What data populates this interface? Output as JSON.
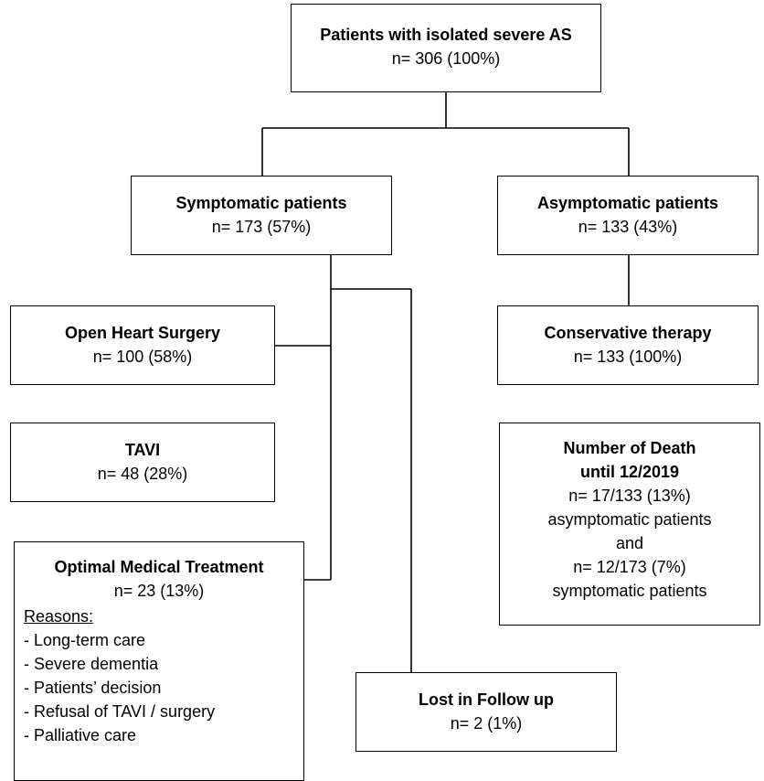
{
  "root": {
    "title": "Patients with isolated severe AS",
    "count": "n= 306 (100%)"
  },
  "symptomatic": {
    "title": "Symptomatic patients",
    "count": "n= 173 (57%)"
  },
  "asymptomatic": {
    "title": "Asymptomatic patients",
    "count": "n= 133 (43%)"
  },
  "surgery": {
    "title": "Open Heart Surgery",
    "count": "n= 100 (58%)"
  },
  "tavi": {
    "title": "TAVI",
    "count": "n= 48 (28%)"
  },
  "omt": {
    "title": "Optimal Medical Treatment",
    "count": "n= 23 (13%)",
    "reasons_label": "Reasons:",
    "reasons": [
      "- Long-term care",
      "- Severe dementia",
      "- Patients’ decision",
      "- Refusal of TAVI / surgery",
      "- Palliative care"
    ]
  },
  "conservative": {
    "title": "Conservative therapy",
    "count": "n= 133 (100%)"
  },
  "death": {
    "title_line1": "Number of Death",
    "title_line2": "until 12/2019",
    "lines": [
      "n= 17/133 (13%)",
      "asymptomatic patients",
      "and",
      "n= 12/173 (7%)",
      "symptomatic patients"
    ]
  },
  "lost": {
    "title": "Lost in Follow up",
    "count": "n= 2 (1%)"
  }
}
